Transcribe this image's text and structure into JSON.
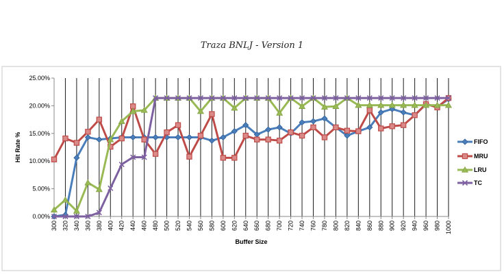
{
  "chart_data": {
    "type": "line",
    "title": "Traza BNLJ - Version 1",
    "xlabel": "Buffer Size",
    "ylabel": "Hit Rate %",
    "ylim": [
      0,
      0.25
    ],
    "y_ticks": [
      "0.00%",
      "5.00%",
      "10.00%",
      "15.00%",
      "20.00%",
      "25.00%"
    ],
    "grid": "vertical lines",
    "legend": "right",
    "categories": [
      "300",
      "320",
      "340",
      "360",
      "380",
      "400",
      "420",
      "440",
      "460",
      "480",
      "500",
      "520",
      "540",
      "560",
      "580",
      "600",
      "620",
      "640",
      "660",
      "680",
      "700",
      "720",
      "740",
      "760",
      "780",
      "800",
      "820",
      "840",
      "860",
      "880",
      "900",
      "920",
      "940",
      "960",
      "980",
      "1000"
    ],
    "series": [
      {
        "name": "FIFO",
        "color": "#4A7EBB",
        "marker": "diamond",
        "values": [
          0.0,
          0.003,
          0.106,
          0.143,
          0.139,
          0.141,
          0.143,
          0.143,
          0.143,
          0.143,
          0.143,
          0.143,
          0.143,
          0.143,
          0.137,
          0.143,
          0.154,
          0.165,
          0.148,
          0.157,
          0.161,
          0.15,
          0.17,
          0.172,
          0.177,
          0.161,
          0.146,
          0.154,
          0.161,
          0.188,
          0.194,
          0.188,
          0.183,
          0.203,
          0.198,
          0.212
        ]
      },
      {
        "name": "MRU",
        "color": "#BE4B48",
        "marker": "square",
        "values": [
          0.103,
          0.141,
          0.133,
          0.153,
          0.175,
          0.126,
          0.141,
          0.199,
          0.139,
          0.113,
          0.152,
          0.165,
          0.108,
          0.146,
          0.185,
          0.106,
          0.106,
          0.146,
          0.139,
          0.139,
          0.137,
          0.152,
          0.146,
          0.161,
          0.143,
          0.161,
          0.155,
          0.154,
          0.192,
          0.159,
          0.163,
          0.165,
          0.183,
          0.203,
          0.197,
          0.214
        ]
      },
      {
        "name": "LRU",
        "color": "#98B954",
        "marker": "triangle",
        "values": [
          0.012,
          0.03,
          0.01,
          0.061,
          0.049,
          0.139,
          0.172,
          0.19,
          0.192,
          0.214,
          0.214,
          0.214,
          0.214,
          0.19,
          0.214,
          0.214,
          0.196,
          0.214,
          0.214,
          0.214,
          0.187,
          0.214,
          0.199,
          0.214,
          0.198,
          0.199,
          0.214,
          0.201,
          0.201,
          0.201,
          0.201,
          0.201,
          0.201,
          0.201,
          0.201,
          0.201
        ]
      },
      {
        "name": "TC",
        "color": "#7D60A0",
        "marker": "x",
        "values": [
          0.0,
          0.0,
          0.0,
          0.0,
          0.007,
          0.051,
          0.094,
          0.107,
          0.107,
          0.214,
          0.214,
          0.214,
          0.214,
          0.214,
          0.214,
          0.214,
          0.214,
          0.214,
          0.214,
          0.214,
          0.214,
          0.214,
          0.214,
          0.214,
          0.214,
          0.214,
          0.214,
          0.214,
          0.214,
          0.214,
          0.214,
          0.214,
          0.214,
          0.214,
          0.214,
          0.214
        ]
      }
    ]
  }
}
